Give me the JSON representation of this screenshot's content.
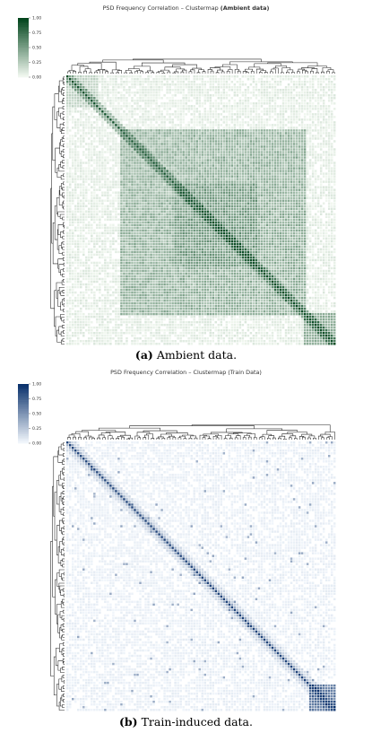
{
  "chart_data": [
    {
      "type": "heatmap",
      "subtype": "clustermap",
      "title_prefix": "PSD Frequency Correlation – Clustermap",
      "title_suffix": "(Ambient data)",
      "caption_tag": "(a)",
      "caption_text": "Ambient data.",
      "colormap": "Greens",
      "color_low": "#f7fcf5",
      "color_high": "#00441b",
      "colorbar_ticks": [
        "1.00",
        "0.75",
        "0.50",
        "0.25",
        "0.00"
      ],
      "value_range": [
        0,
        1
      ],
      "dendrograms": [
        "top",
        "left"
      ],
      "matrix_size": 100,
      "structure": "dense correlation block across central frequencies, strong diagonal"
    },
    {
      "type": "heatmap",
      "subtype": "clustermap",
      "title_prefix": "PSD Frequency Correlation – Clustermap",
      "title_suffix": "(Train Data)",
      "caption_tag": "(b)",
      "caption_text": "Train-induced data.",
      "colormap": "Blues",
      "color_low": "#f7fbff",
      "color_high": "#08306b",
      "colorbar_ticks": [
        "1.00",
        "0.75",
        "0.50",
        "0.25",
        "0.00"
      ],
      "value_range": [
        0,
        1
      ],
      "dendrograms": [
        "top",
        "left"
      ],
      "matrix_size": 100,
      "structure": "mostly weak correlation, strong diagonal, dense block at bottom-right"
    }
  ]
}
